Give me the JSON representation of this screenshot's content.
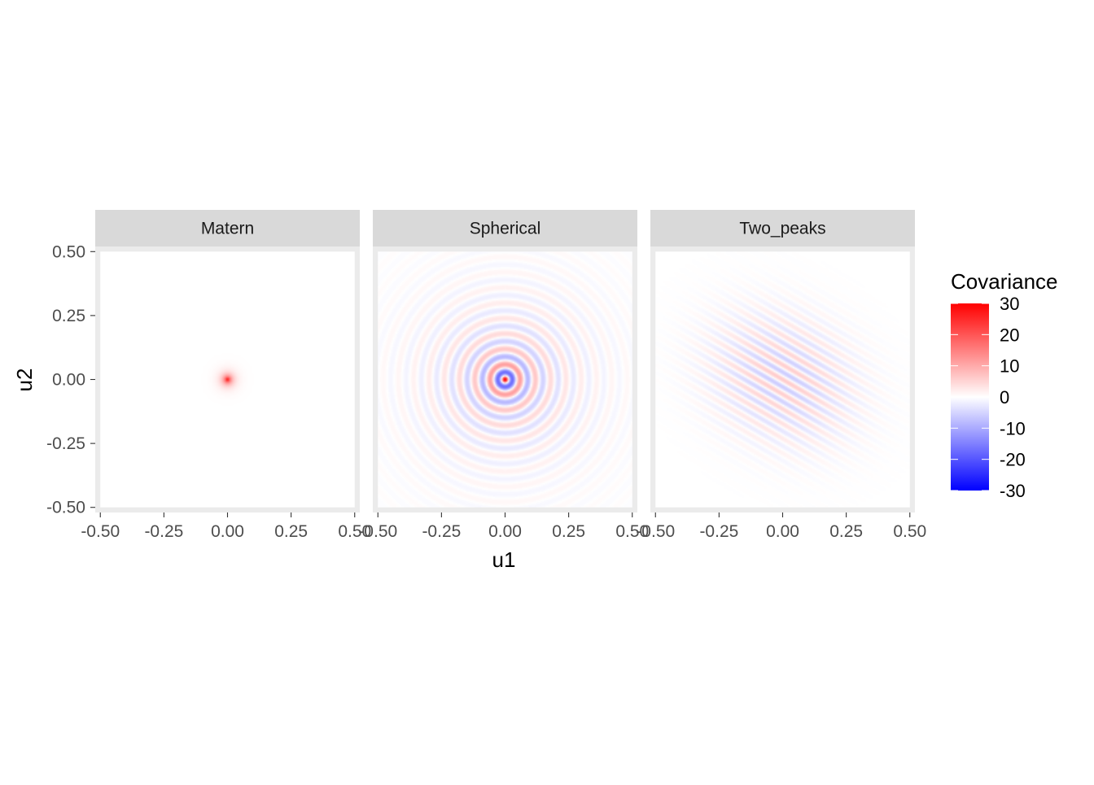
{
  "chart_data": {
    "type": "heatmap",
    "xlabel": "u1",
    "ylabel": "u2",
    "xlim": [
      -0.52,
      0.52
    ],
    "ylim": [
      -0.52,
      0.52
    ],
    "x_ticks": [
      -0.5,
      -0.25,
      0.0,
      0.25,
      0.5
    ],
    "y_ticks": [
      -0.5,
      -0.25,
      0.0,
      0.25,
      0.5
    ],
    "x_tick_labels": [
      "-0.50",
      "-0.25",
      "0.00",
      "0.25",
      "0.50"
    ],
    "y_tick_labels": [
      "-0.50",
      "-0.25",
      "0.00",
      "0.25",
      "0.50"
    ],
    "grid": true,
    "panels": [
      {
        "name": "Matern",
        "pattern": "matern",
        "peak": 30,
        "scale": 0.016
      },
      {
        "name": "Spherical",
        "pattern": "spherical",
        "peak": 30,
        "ring_period": 0.06,
        "decay": 0.2
      },
      {
        "name": "Two_peaks",
        "pattern": "two_peaks",
        "peak": 6,
        "stripe_period": 0.05,
        "orientation_deg": 30
      }
    ],
    "legend": {
      "title": "Covariance",
      "position": "right",
      "breaks": [
        30,
        20,
        10,
        0,
        -10,
        -20,
        -30
      ],
      "labels": [
        "30",
        "20",
        "10",
        "0",
        "-10",
        "-20",
        "-30"
      ],
      "range": [
        -30,
        30
      ],
      "colors": {
        "high": "#ff0000",
        "mid": "#ffffff",
        "low": "#0000ff"
      }
    }
  }
}
